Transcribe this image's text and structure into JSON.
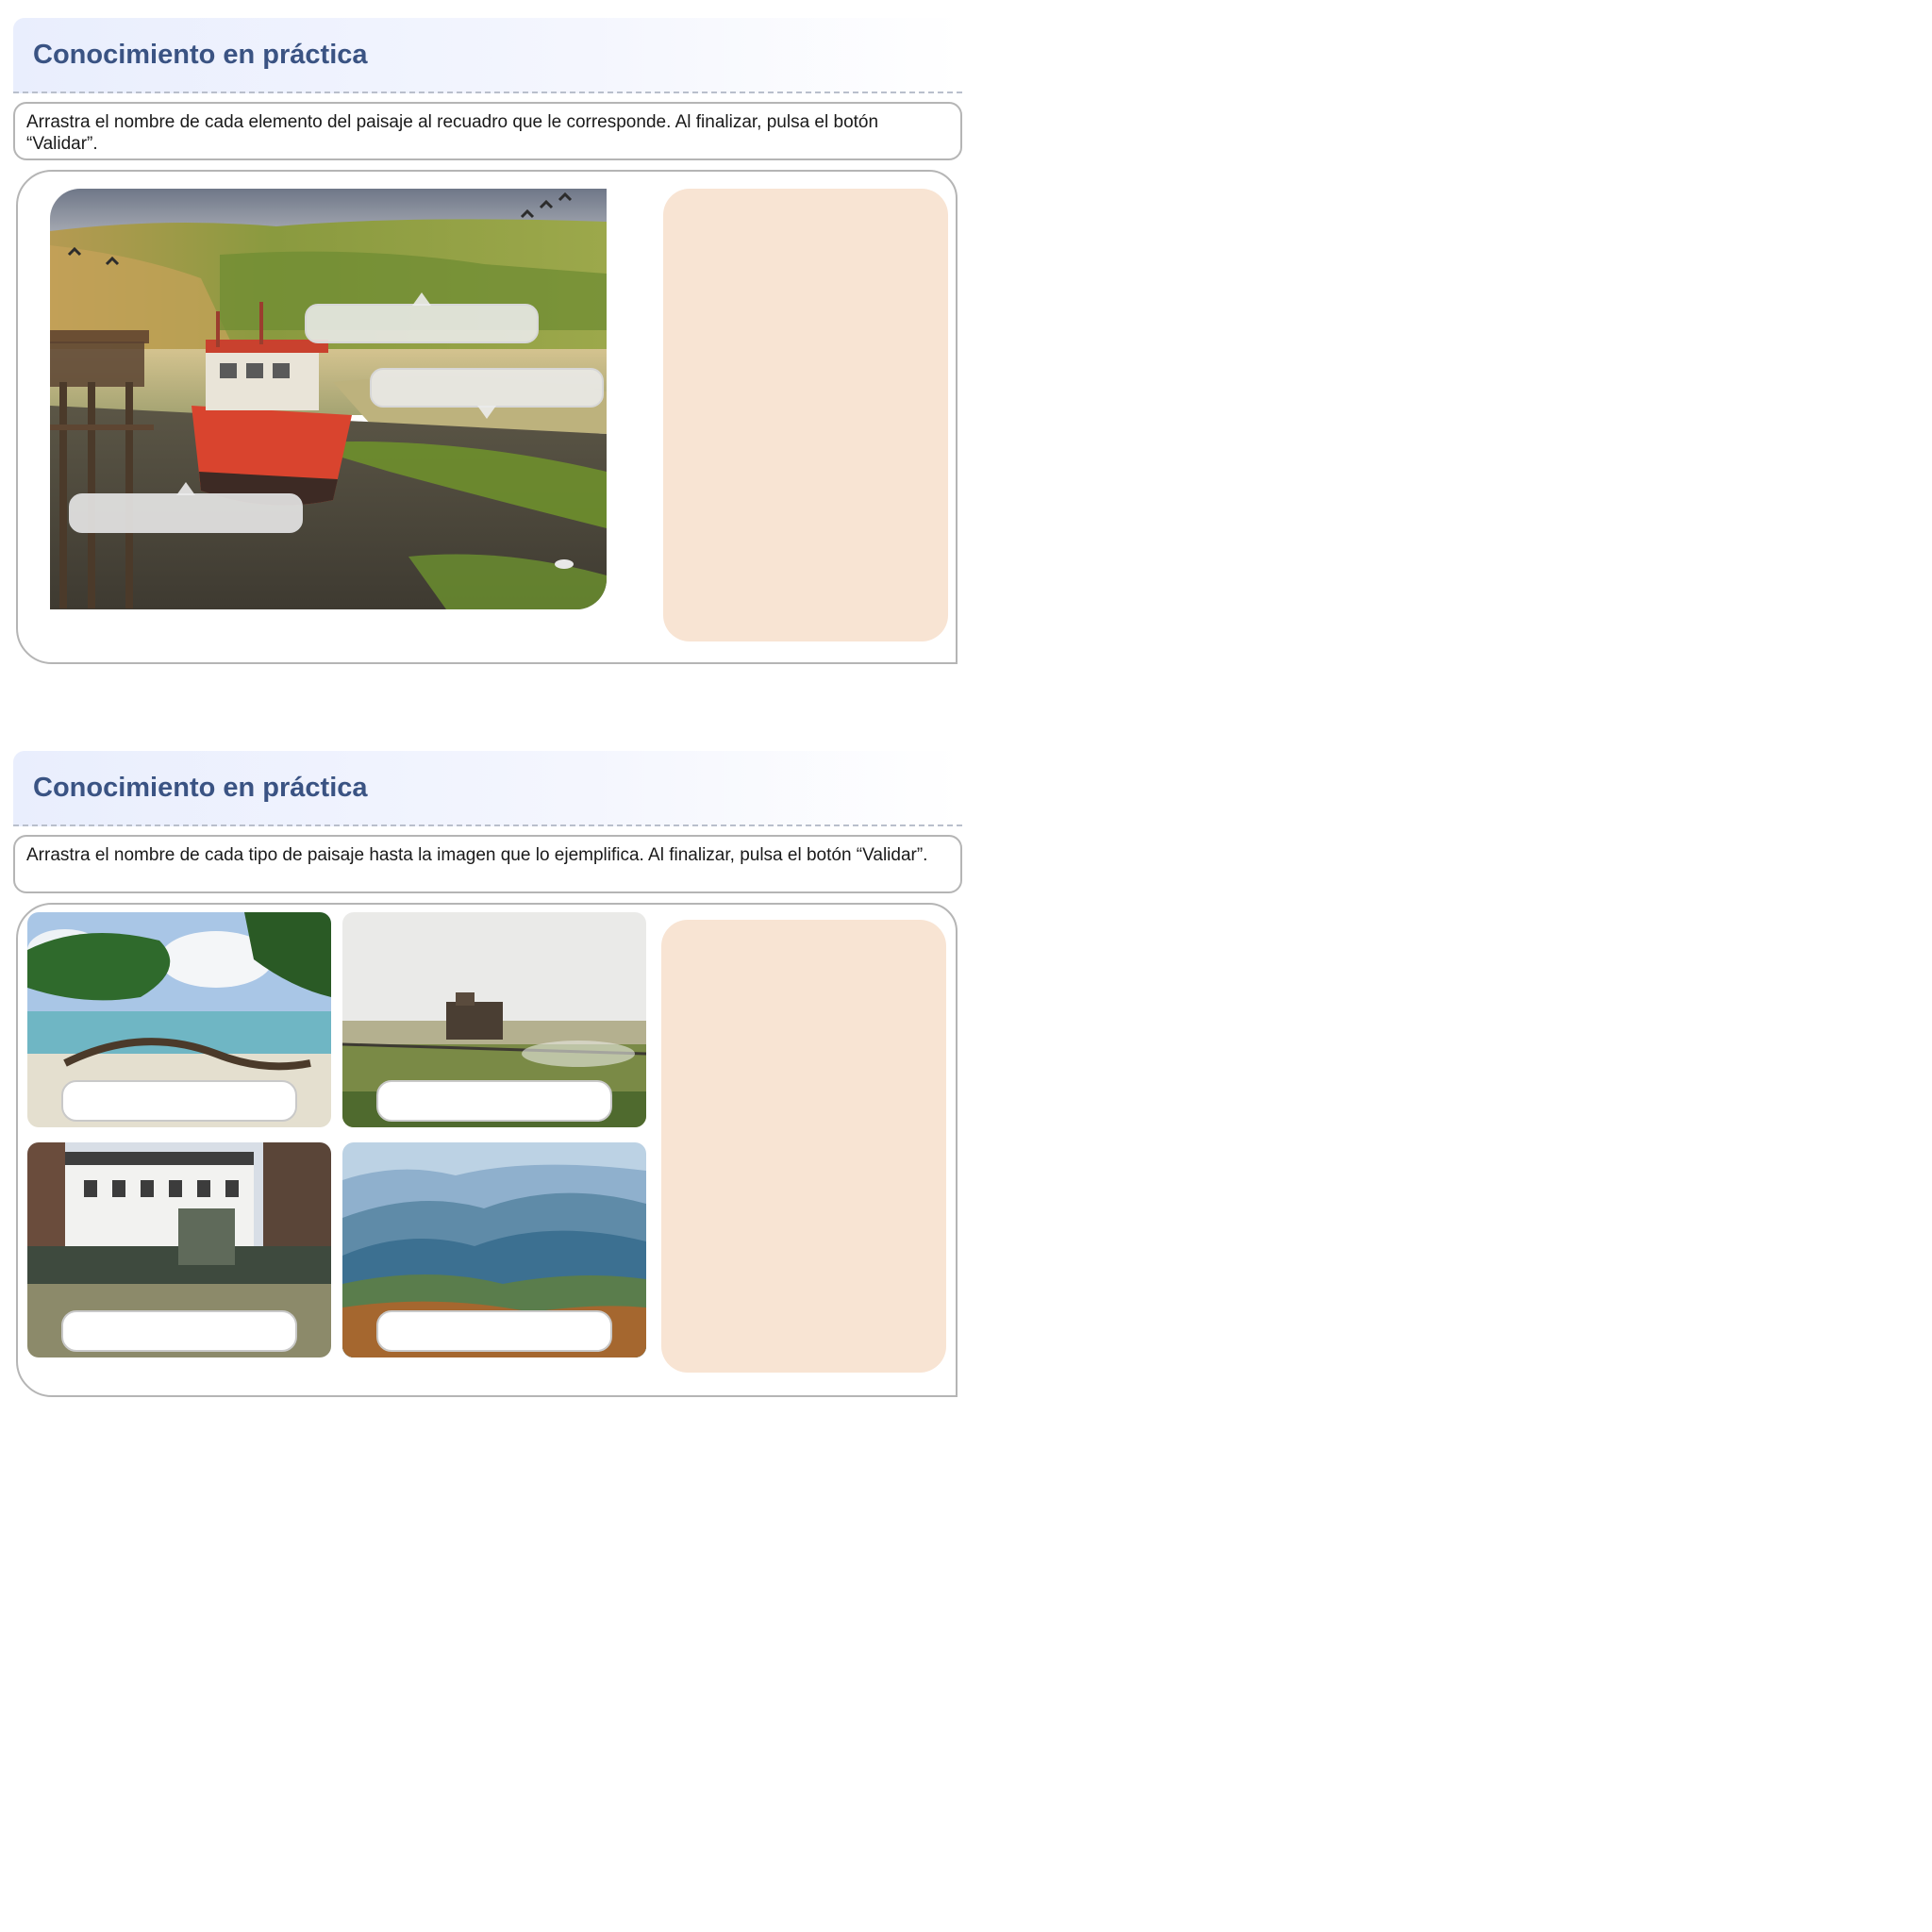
{
  "activities": [
    {
      "title": "Conocimiento en práctica",
      "instruction": "Arrastra el nombre de cada elemento del paisaje al recuadro que le corresponde. Al finalizar, pulsa el botón “Validar”."
    },
    {
      "title": "Conocimiento en práctica",
      "instruction": "Arrastra el nombre de cada tipo de paisaje hasta la imagen que lo ejemplifica. Al finalizar, pulsa el botón “Validar”."
    }
  ],
  "colors": {
    "title": "#3a5383",
    "word_bank": "#f8e4d3",
    "border": "#b5b5b5"
  }
}
